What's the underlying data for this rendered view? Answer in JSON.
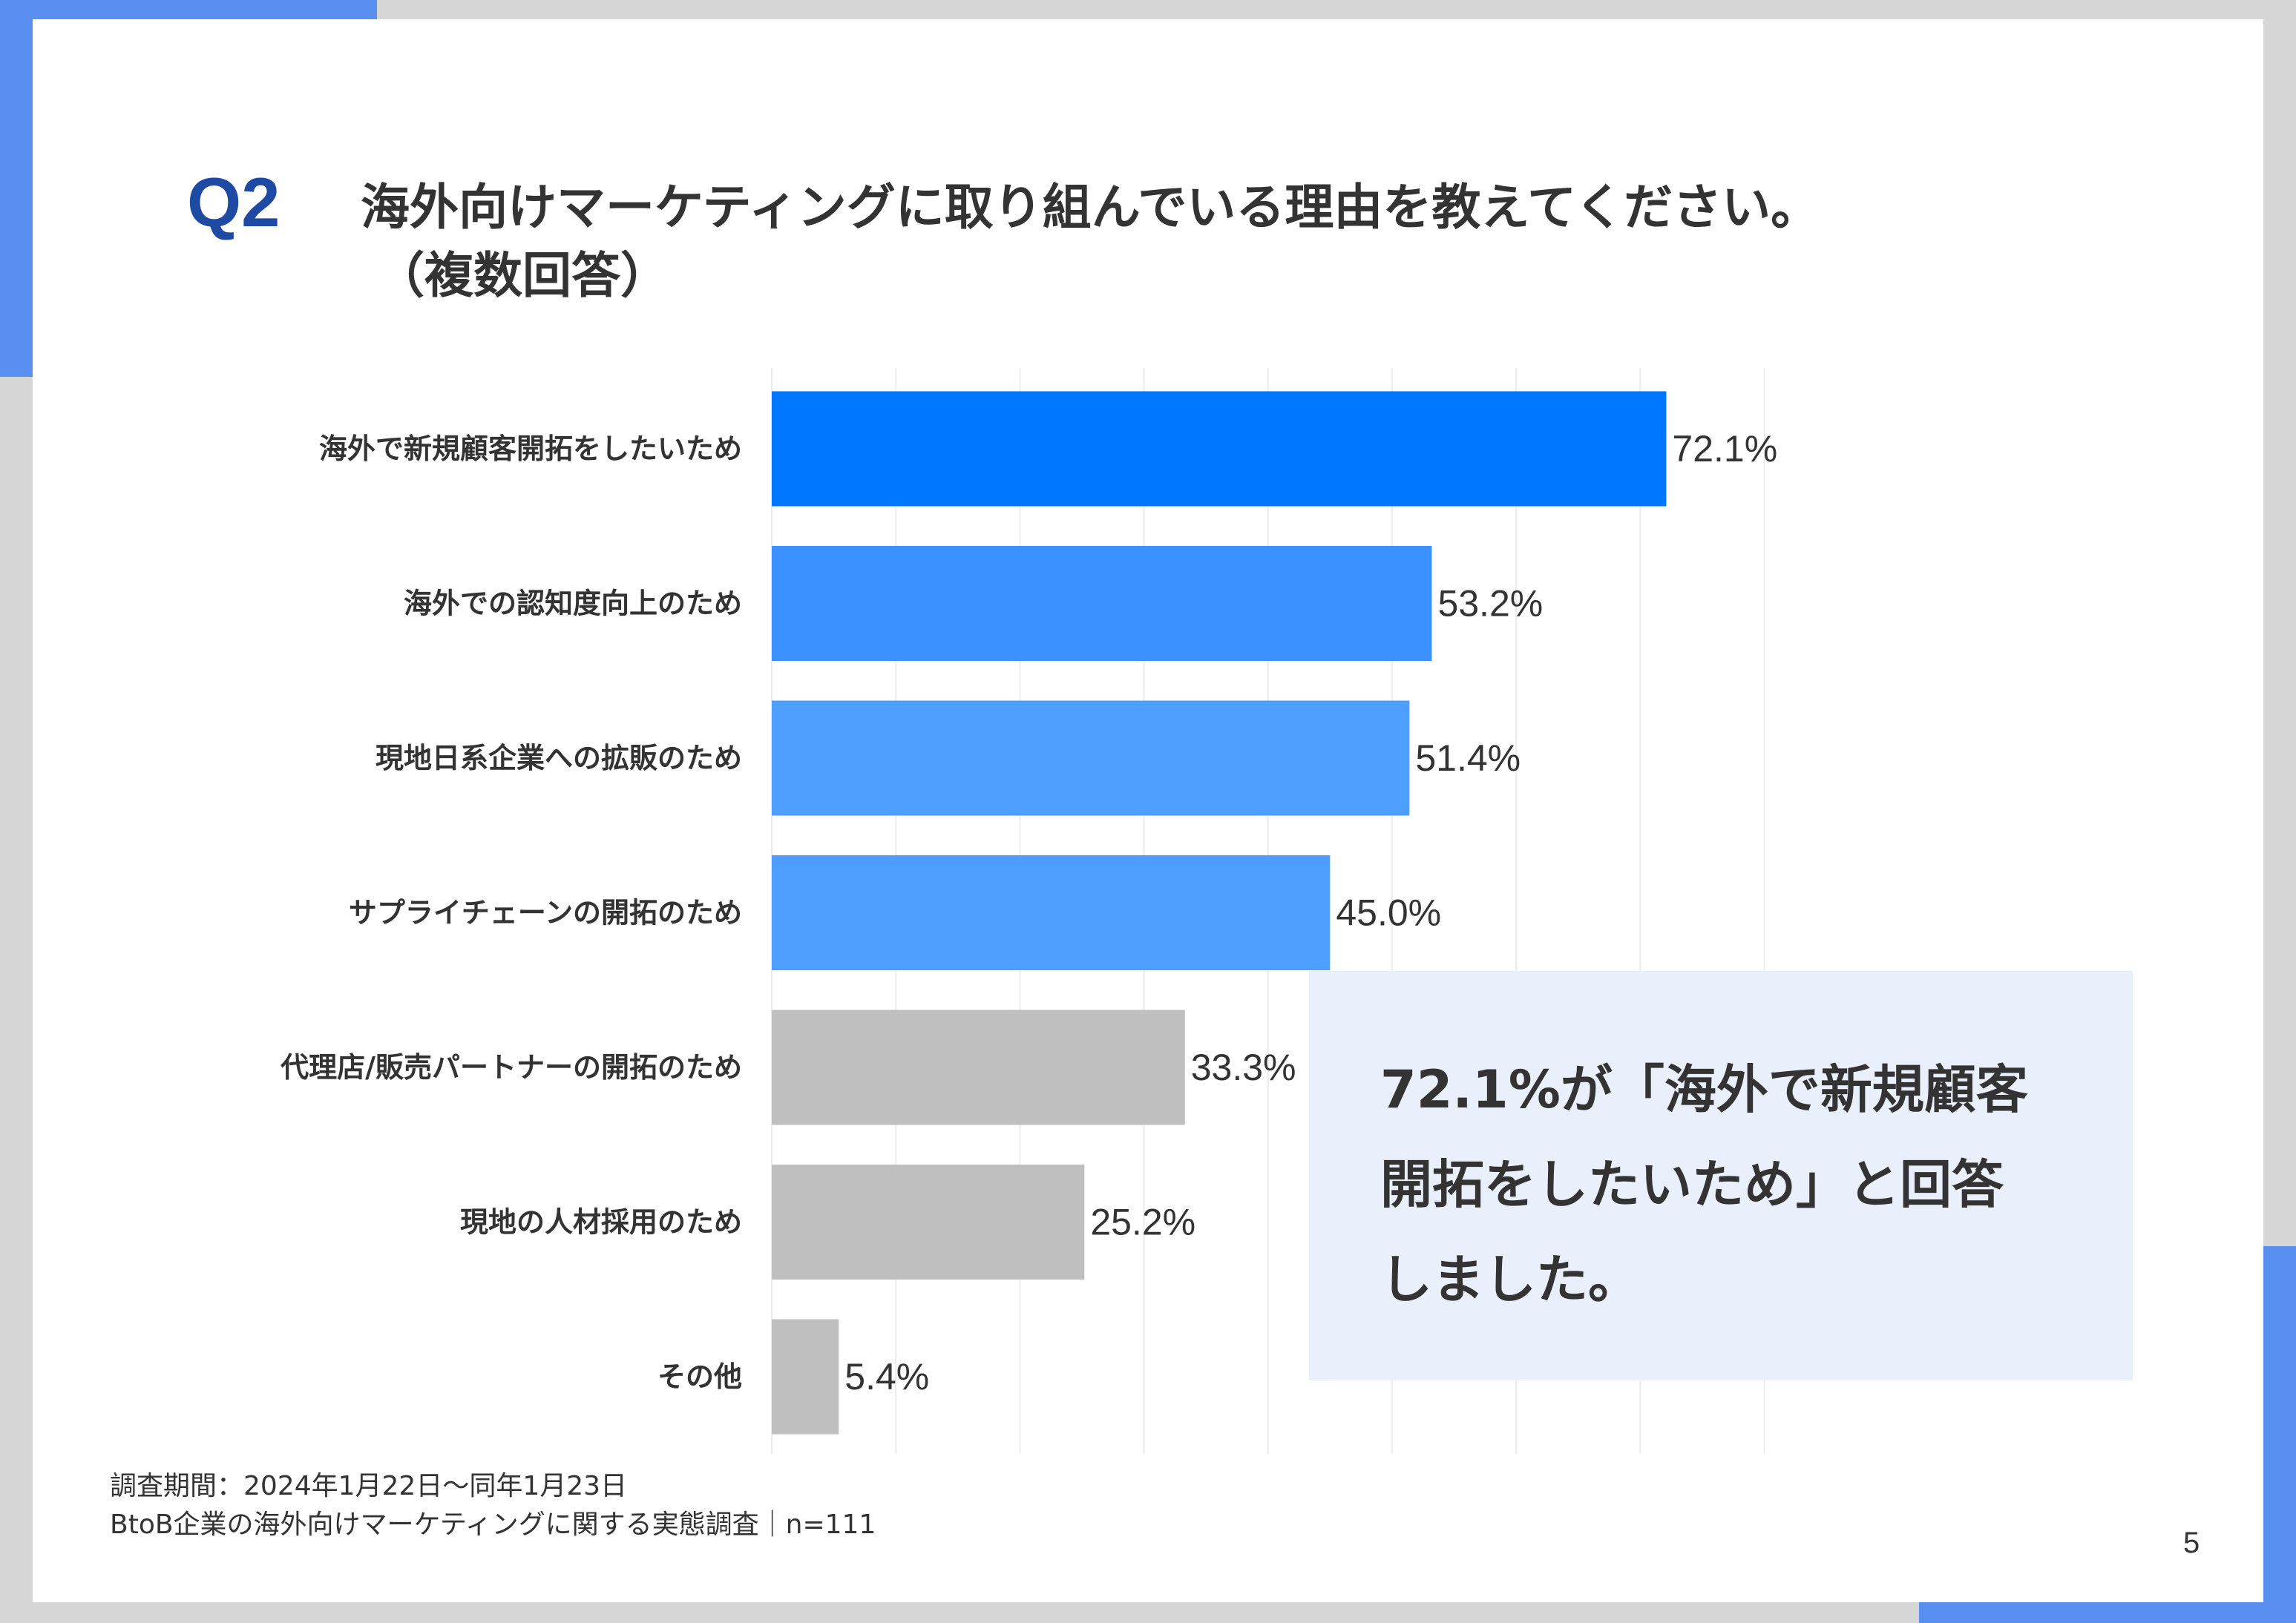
{
  "header": {
    "question_label": "Q2",
    "title_line1": "海外向けマーケティングに取り組んでいる理由を教えてください。",
    "title_line2": "（複数回答）"
  },
  "chart_data": {
    "type": "bar",
    "orientation": "horizontal",
    "categories": [
      "海外で新規顧客開拓をしたいため",
      "海外での認知度向上のため",
      "現地日系企業への拡販のため",
      "サプライチェーンの開拓のため",
      "代理店/販売パートナーの開拓のため",
      "現地の人材採用のため",
      "その他"
    ],
    "values": [
      72.1,
      53.2,
      51.4,
      45.0,
      33.3,
      25.2,
      5.4
    ],
    "value_labels": [
      "72.1%",
      "53.2%",
      "51.4%",
      "45.0%",
      "33.3%",
      "25.2%",
      "5.4%"
    ],
    "bar_colors": [
      "#0077ff",
      "#3a91ff",
      "#4d9eff",
      "#4d9eff",
      "#bfbfbf",
      "#bfbfbf",
      "#bfbfbf"
    ],
    "xlim": [
      0,
      80
    ],
    "grid": "vertical, light",
    "legend": "none"
  },
  "callout": {
    "line1": "72.1%が「海外で新規顧客",
    "line2": "開拓をしたいため」と回答",
    "line3": "しました。"
  },
  "footnote": {
    "line1": "調査期間：2024年1月22日～同年1月23日",
    "line2": "BtoB企業の海外向けマーケティングに関する実態調査｜n=111"
  },
  "page_number": "5",
  "colors": {
    "accent": "#5a8ff2",
    "question_label": "#1f4aa3",
    "callout_background": "#e9effb"
  }
}
